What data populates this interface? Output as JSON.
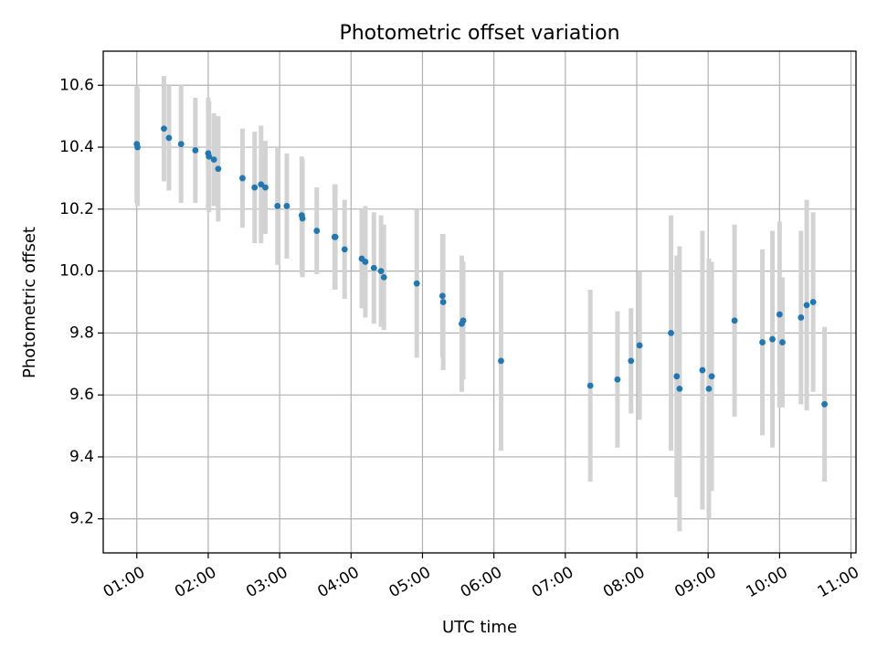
{
  "chart_data": {
    "type": "scatter",
    "title": "Photometric offset variation",
    "xlabel": "UTC time",
    "ylabel": "Photometric offset",
    "xlim": [
      0.53,
      11.07
    ],
    "ylim": [
      9.09,
      10.71
    ],
    "grid": true,
    "x_ticks": [
      1,
      2,
      3,
      4,
      5,
      6,
      7,
      8,
      9,
      10,
      11
    ],
    "x_tick_labels": [
      "01:00",
      "02:00",
      "03:00",
      "04:00",
      "05:00",
      "06:00",
      "07:00",
      "08:00",
      "09:00",
      "10:00",
      "11:00"
    ],
    "y_ticks": [
      9.2,
      9.4,
      9.6,
      9.8,
      10.0,
      10.2,
      10.4,
      10.6
    ],
    "y_tick_labels": [
      "9.2",
      "9.4",
      "9.6",
      "9.8",
      "10.0",
      "10.2",
      "10.4",
      "10.6"
    ],
    "point_color": "#1f77b4",
    "errorbar_color": "#d3d3d3",
    "series": [
      {
        "x": [
          1.0,
          1.01,
          1.38,
          1.45,
          1.62,
          1.82,
          2.0,
          2.01,
          2.08,
          2.14,
          2.48,
          2.65,
          2.74,
          2.8,
          2.97,
          3.1,
          3.31,
          3.32,
          3.52,
          3.77,
          3.78,
          3.91,
          4.15,
          4.2,
          4.32,
          4.42,
          4.46,
          4.92,
          5.28,
          5.29,
          5.55,
          5.57,
          6.1,
          7.35,
          7.73,
          7.92,
          8.04,
          8.48,
          8.56,
          8.6,
          8.92,
          9.01,
          9.05,
          9.37,
          9.76,
          9.9,
          10.0,
          10.04,
          10.3,
          10.38,
          10.47,
          10.63
        ],
        "y": [
          10.41,
          10.4,
          10.46,
          10.43,
          10.41,
          10.39,
          10.38,
          10.37,
          10.36,
          10.33,
          10.3,
          10.27,
          10.28,
          10.27,
          10.21,
          10.21,
          10.18,
          10.17,
          10.13,
          10.11,
          10.11,
          10.07,
          10.04,
          10.03,
          10.01,
          10.0,
          9.98,
          9.96,
          9.92,
          9.9,
          9.83,
          9.84,
          9.71,
          9.63,
          9.65,
          9.71,
          9.76,
          9.8,
          9.66,
          9.62,
          9.68,
          9.62,
          9.66,
          9.84,
          9.77,
          9.78,
          9.86,
          9.77,
          9.85,
          9.89,
          9.9,
          9.57
        ],
        "yerr": [
          0.19,
          0.19,
          0.17,
          0.17,
          0.19,
          0.17,
          0.18,
          0.18,
          0.15,
          0.17,
          0.16,
          0.18,
          0.19,
          0.15,
          0.19,
          0.17,
          0.19,
          0.19,
          0.14,
          0.17,
          0.17,
          0.16,
          0.16,
          0.18,
          0.18,
          0.18,
          0.17,
          0.24,
          0.2,
          0.22,
          0.22,
          0.19,
          0.29,
          0.31,
          0.22,
          0.17,
          0.24,
          0.38,
          0.39,
          0.46,
          0.45,
          0.42,
          0.37,
          0.31,
          0.3,
          0.35,
          0.3,
          0.21,
          0.28,
          0.34,
          0.29,
          0.25
        ]
      }
    ]
  }
}
